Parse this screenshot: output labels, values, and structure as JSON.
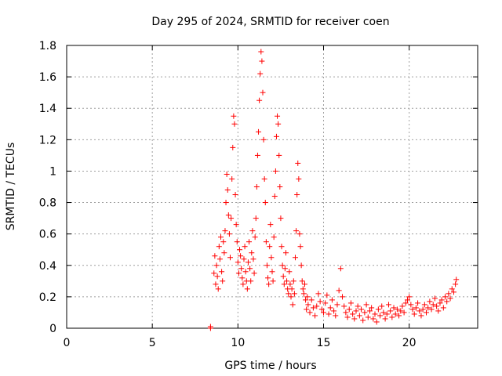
{
  "chart_data": {
    "type": "scatter",
    "title": "Day 295 of 2024, SRMTID for receiver coen",
    "xlabel": "GPS time / hours",
    "ylabel": "SRMTID / TECUs",
    "xlim": [
      0,
      24
    ],
    "ylim": [
      0,
      1.8
    ],
    "xticks": [
      0,
      5,
      10,
      15,
      20
    ],
    "xtick_labels": [
      "0",
      "5",
      "10",
      "15",
      "20"
    ],
    "yticks": [
      0,
      0.2,
      0.4,
      0.6,
      0.8,
      1,
      1.2,
      1.4,
      1.6,
      1.8
    ],
    "ytick_labels": [
      "0",
      "0.2",
      "0.4",
      "0.6",
      "0.8",
      "1",
      "1.2",
      "1.4",
      "1.6",
      "1.8"
    ],
    "grid": true,
    "marker": "+",
    "color": "#ff0000",
    "series": [
      {
        "name": "SRMTID",
        "x": [
          8.4,
          8.4,
          8.6,
          8.65,
          8.7,
          8.75,
          8.8,
          8.85,
          8.9,
          8.95,
          9.0,
          9.05,
          9.1,
          9.15,
          9.2,
          9.25,
          9.3,
          9.35,
          9.4,
          9.45,
          9.5,
          9.55,
          9.6,
          9.65,
          9.7,
          9.75,
          9.8,
          9.85,
          9.9,
          9.95,
          10.0,
          10.05,
          10.1,
          10.15,
          10.2,
          10.25,
          10.3,
          10.35,
          10.4,
          10.45,
          10.5,
          10.55,
          10.6,
          10.65,
          10.7,
          10.75,
          10.8,
          10.85,
          10.9,
          10.95,
          11.0,
          11.05,
          11.1,
          11.15,
          11.2,
          11.25,
          11.3,
          11.35,
          11.4,
          11.45,
          11.5,
          11.55,
          11.6,
          11.65,
          11.7,
          11.75,
          11.8,
          11.85,
          11.9,
          11.95,
          12.0,
          12.05,
          12.1,
          12.15,
          12.2,
          12.25,
          12.3,
          12.35,
          12.4,
          12.45,
          12.5,
          12.55,
          12.6,
          12.65,
          12.7,
          12.75,
          12.8,
          12.85,
          12.9,
          12.95,
          13.0,
          13.05,
          13.1,
          13.15,
          13.2,
          13.25,
          13.3,
          13.35,
          13.4,
          13.45,
          13.5,
          13.55,
          13.6,
          13.65,
          13.7,
          13.75,
          13.8,
          13.85,
          13.9,
          13.95,
          14.0,
          14.05,
          14.1,
          14.2,
          14.3,
          14.4,
          14.5,
          14.6,
          14.7,
          14.8,
          14.9,
          15.0,
          15.1,
          15.2,
          15.3,
          15.4,
          15.5,
          15.6,
          15.7,
          15.8,
          15.9,
          16.0,
          16.1,
          16.2,
          16.3,
          16.4,
          16.5,
          16.6,
          16.7,
          16.8,
          16.9,
          17.0,
          17.1,
          17.2,
          17.3,
          17.4,
          17.5,
          17.6,
          17.7,
          17.8,
          17.9,
          18.0,
          18.1,
          18.2,
          18.3,
          18.4,
          18.5,
          18.6,
          18.7,
          18.8,
          18.9,
          19.0,
          19.1,
          19.2,
          19.3,
          19.4,
          19.5,
          19.6,
          19.7,
          19.8,
          19.9,
          20.0,
          20.1,
          20.2,
          20.3,
          20.4,
          20.5,
          20.6,
          20.7,
          20.8,
          20.9,
          21.0,
          21.1,
          21.2,
          21.3,
          21.4,
          21.5,
          21.6,
          21.7,
          21.8,
          21.9,
          22.0,
          22.1,
          22.2,
          22.3,
          22.4,
          22.5,
          22.6,
          22.7,
          22.75
        ],
        "y": [
          0.0,
          0.01,
          0.35,
          0.46,
          0.28,
          0.4,
          0.33,
          0.25,
          0.52,
          0.44,
          0.58,
          0.36,
          0.3,
          0.55,
          0.48,
          0.62,
          0.8,
          0.98,
          0.88,
          0.72,
          0.6,
          0.45,
          0.7,
          0.95,
          1.15,
          1.35,
          1.3,
          0.85,
          0.66,
          0.55,
          0.42,
          0.35,
          0.5,
          0.46,
          0.38,
          0.32,
          0.28,
          0.44,
          0.52,
          0.36,
          0.3,
          0.25,
          0.42,
          0.55,
          0.38,
          0.3,
          0.48,
          0.62,
          0.44,
          0.35,
          0.58,
          0.7,
          0.9,
          1.1,
          1.25,
          1.45,
          1.62,
          1.76,
          1.7,
          1.5,
          1.2,
          0.95,
          0.8,
          0.55,
          0.4,
          0.32,
          0.28,
          0.52,
          0.66,
          0.45,
          0.36,
          0.3,
          0.58,
          0.84,
          1.0,
          1.22,
          1.35,
          1.3,
          1.1,
          0.9,
          0.7,
          0.52,
          0.4,
          0.33,
          0.28,
          0.38,
          0.48,
          0.3,
          0.25,
          0.22,
          0.36,
          0.28,
          0.2,
          0.25,
          0.15,
          0.3,
          0.22,
          0.45,
          0.62,
          0.85,
          1.05,
          0.95,
          0.6,
          0.52,
          0.4,
          0.3,
          0.25,
          0.22,
          0.28,
          0.18,
          0.12,
          0.2,
          0.15,
          0.1,
          0.18,
          0.13,
          0.08,
          0.14,
          0.22,
          0.17,
          0.12,
          0.1,
          0.16,
          0.21,
          0.09,
          0.13,
          0.18,
          0.11,
          0.08,
          0.15,
          0.24,
          0.38,
          0.2,
          0.14,
          0.1,
          0.07,
          0.12,
          0.16,
          0.09,
          0.06,
          0.11,
          0.14,
          0.08,
          0.12,
          0.05,
          0.1,
          0.15,
          0.07,
          0.11,
          0.13,
          0.06,
          0.09,
          0.04,
          0.12,
          0.08,
          0.14,
          0.1,
          0.06,
          0.09,
          0.15,
          0.11,
          0.07,
          0.13,
          0.09,
          0.12,
          0.08,
          0.11,
          0.14,
          0.1,
          0.16,
          0.18,
          0.2,
          0.15,
          0.12,
          0.09,
          0.13,
          0.16,
          0.11,
          0.08,
          0.12,
          0.15,
          0.1,
          0.13,
          0.17,
          0.12,
          0.15,
          0.19,
          0.14,
          0.11,
          0.16,
          0.18,
          0.13,
          0.2,
          0.17,
          0.22,
          0.19,
          0.25,
          0.23,
          0.28,
          0.31
        ]
      }
    ]
  }
}
